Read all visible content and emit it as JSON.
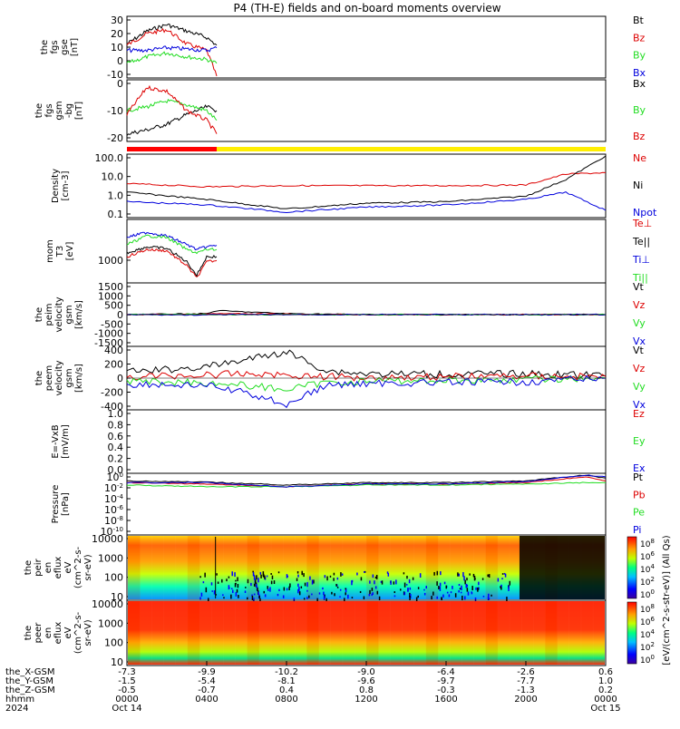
{
  "title": "P4 (TH-E) fields and on-board moments overview",
  "colorbar_label": "[eV/(cm^2-s-str-eV)] (All Qs)",
  "colorbar_ticks": [
    "10^8",
    "10^6",
    "10^4",
    "10^2",
    "10^0"
  ],
  "colors": {
    "black": "#000000",
    "red": "#dd0000",
    "green": "#22dd22",
    "blue": "#0000dd",
    "yellow": "#ffee00"
  },
  "mode_bar": {
    "slow_until": "0430",
    "colors": [
      "#ff0000",
      "#ffee00"
    ]
  },
  "chart_data": [
    {
      "type": "line",
      "panel": "fgs_gse",
      "ylabel": [
        "the",
        "fgs",
        "gse",
        "[nT]"
      ],
      "ylim": [
        -10,
        35
      ],
      "yticks": [
        "30",
        "20",
        "10",
        "0",
        "-10"
      ],
      "x": [
        "0000",
        "0100",
        "0200",
        "0300",
        "0400",
        "0430"
      ],
      "series": [
        {
          "name": "Bt",
          "color": "black",
          "values": [
            15,
            25,
            30,
            25,
            20,
            14
          ]
        },
        {
          "name": "Bz",
          "color": "red",
          "values": [
            14,
            23,
            26,
            15,
            10,
            -10
          ]
        },
        {
          "name": "By",
          "color": "green",
          "values": [
            0,
            5,
            8,
            5,
            3,
            0
          ]
        },
        {
          "name": "Bx",
          "color": "blue",
          "values": [
            10,
            10,
            12,
            11,
            10,
            12
          ]
        }
      ]
    },
    {
      "type": "line",
      "panel": "fgs_gsm",
      "ylabel": [
        "the",
        "fgs",
        "gsm",
        "-bg",
        "[nT]"
      ],
      "ylim": [
        -25,
        5
      ],
      "yticks": [
        "0",
        "-10",
        "-20"
      ],
      "x": [
        "0000",
        "0100",
        "0200",
        "0300",
        "0400",
        "0430"
      ],
      "series": [
        {
          "name": "Bx",
          "color": "black",
          "values": [
            -22,
            -20,
            -17,
            -12,
            -8,
            -10
          ]
        },
        {
          "name": "By",
          "color": "green",
          "values": [
            -10,
            -8,
            -5,
            -7,
            -10,
            -15
          ]
        },
        {
          "name": "Bz",
          "color": "red",
          "values": [
            -12,
            2,
            0,
            -10,
            -15,
            -22
          ]
        }
      ]
    },
    {
      "type": "line",
      "panel": "density",
      "ylabel": [
        "Density",
        "[cm-3]"
      ],
      "log": true,
      "ylim": [
        0.05,
        100
      ],
      "yticks": [
        "100.0",
        "10.0",
        "1.0",
        "0.1"
      ],
      "x": [
        "0000",
        "0400",
        "0800",
        "1200",
        "1600",
        "2000",
        "2200",
        "2400"
      ],
      "series": [
        {
          "name": "Ne",
          "color": "red",
          "values": [
            3,
            2,
            2.3,
            2.3,
            2.3,
            2.5,
            10,
            12
          ]
        },
        {
          "name": "Ni",
          "color": "black",
          "values": [
            1,
            0.4,
            0.12,
            0.25,
            0.3,
            0.6,
            5,
            100
          ]
        },
        {
          "name": "Npot",
          "color": "blue",
          "values": [
            0.3,
            0.2,
            0.08,
            0.15,
            0.2,
            0.4,
            1,
            0.1
          ]
        }
      ]
    },
    {
      "type": "line",
      "panel": "mom_temp",
      "ylabel": [
        "mom",
        "T3",
        "[eV]"
      ],
      "log": true,
      "ylim": [
        500,
        15000
      ],
      "yticks": [
        "1000"
      ],
      "x": [
        "0000",
        "0100",
        "0200",
        "0300",
        "0330",
        "0400",
        "0430"
      ],
      "series": [
        {
          "name": "Te⊥",
          "color": "red",
          "values": [
            2000,
            3000,
            2800,
            1200,
            600,
            1500,
            1600
          ]
        },
        {
          "name": "Te||",
          "color": "black",
          "values": [
            2500,
            3500,
            3200,
            1500,
            700,
            2000,
            2000
          ]
        },
        {
          "name": "Ti⊥",
          "color": "blue",
          "values": [
            6000,
            8000,
            6500,
            4000,
            3000,
            3500,
            3800
          ]
        },
        {
          "name": "Ti||",
          "color": "green",
          "values": [
            4000,
            6500,
            6000,
            3000,
            2500,
            3000,
            3000
          ]
        }
      ]
    },
    {
      "type": "line",
      "panel": "peim_velocity",
      "ylabel": [
        "the",
        "peim",
        "velocity",
        "gsm",
        "[km/s]"
      ],
      "ylim": [
        -1500,
        1500
      ],
      "yticks": [
        "1500",
        "1000",
        "500",
        "0",
        "-500",
        "-1000",
        "-1500"
      ],
      "x": [
        "0000",
        "0400",
        "0430",
        "0800",
        "1200",
        "1600",
        "2000",
        "2400"
      ],
      "series": [
        {
          "name": "Vt",
          "color": "black",
          "values": [
            0,
            50,
            200,
            50,
            0,
            0,
            0,
            0
          ]
        },
        {
          "name": "Vz",
          "color": "red",
          "values": [
            0,
            20,
            50,
            20,
            0,
            0,
            0,
            0
          ]
        },
        {
          "name": "Vy",
          "color": "green",
          "values": [
            0,
            20,
            0,
            0,
            0,
            0,
            0,
            0
          ]
        },
        {
          "name": "Vx",
          "color": "blue",
          "values": [
            0,
            -20,
            0,
            0,
            0,
            0,
            0,
            0
          ]
        }
      ]
    },
    {
      "type": "line",
      "panel": "peem_velocity",
      "ylabel": [
        "the",
        "peem",
        "velocity",
        "gsm",
        "[km/s]"
      ],
      "ylim": [
        -400,
        400
      ],
      "yticks": [
        "400",
        "200",
        "0",
        "-200",
        "-400"
      ],
      "x": [
        "0000",
        "0400",
        "0600",
        "0800",
        "1000",
        "1200",
        "1600",
        "2000",
        "2400"
      ],
      "series": [
        {
          "name": "Vt",
          "color": "black",
          "values": [
            80,
            150,
            250,
            350,
            100,
            60,
            50,
            60,
            30
          ]
        },
        {
          "name": "Vz",
          "color": "red",
          "values": [
            20,
            40,
            60,
            40,
            20,
            10,
            20,
            30,
            20
          ]
        },
        {
          "name": "Vy",
          "color": "green",
          "values": [
            -40,
            -60,
            -100,
            -150,
            -60,
            -40,
            -30,
            -20,
            0
          ]
        },
        {
          "name": "Vx",
          "color": "blue",
          "values": [
            -80,
            -100,
            -200,
            -350,
            -100,
            -70,
            -60,
            -50,
            0
          ]
        }
      ]
    },
    {
      "type": "line",
      "panel": "e_field",
      "ylabel": [
        "E=-VxB",
        "[mV/m]"
      ],
      "ylim": [
        0,
        1
      ],
      "yticks": [
        "1.0",
        "0.8",
        "0.6",
        "0.4",
        "0.2",
        "0.0"
      ],
      "series": [
        {
          "name": "Ez",
          "color": "red"
        },
        {
          "name": "Ey",
          "color": "green"
        },
        {
          "name": "Ex",
          "color": "blue"
        }
      ]
    },
    {
      "type": "line",
      "panel": "pressure",
      "ylabel": [
        "Pressure",
        "[nPa]"
      ],
      "log": true,
      "yticks": [
        "10^0",
        "10^-2",
        "10^-4",
        "10^-6",
        "10^-8",
        "10^-10"
      ],
      "x": [
        "0000",
        "0400",
        "0800",
        "1200",
        "1600",
        "2000",
        "2300",
        "2400"
      ],
      "series": [
        {
          "name": "Pt",
          "color": "black",
          "values": [
            0.1,
            0.06,
            0.02,
            0.05,
            0.05,
            0.1,
            1,
            0.3
          ]
        },
        {
          "name": "Pb",
          "color": "red",
          "values": [
            0.05,
            0.03,
            0.01,
            0.03,
            0.03,
            0.05,
            0.5,
            0.1
          ]
        },
        {
          "name": "Pe",
          "color": "green",
          "values": [
            0.02,
            0.01,
            0.01,
            0.02,
            0.02,
            0.03,
            0.05,
            0.05
          ]
        },
        {
          "name": "Pi",
          "color": "blue",
          "values": [
            0.05,
            0.05,
            0.01,
            0.03,
            0.03,
            0.08,
            1,
            0.5
          ]
        }
      ]
    },
    {
      "type": "heatmap",
      "panel": "peir",
      "ylabel": [
        "the",
        "peir",
        "en",
        "eflux",
        "eV",
        "(cm^2-s-",
        "sr-eV)"
      ],
      "yticks": [
        "10000",
        "1000",
        "100",
        "10"
      ]
    },
    {
      "type": "heatmap",
      "panel": "peer",
      "ylabel": [
        "the",
        "peer",
        "en",
        "eflux",
        "eV",
        "(cm^2-s-",
        "sr-eV)"
      ],
      "yticks": [
        "10000",
        "1000",
        "100",
        "10"
      ]
    }
  ],
  "legends": [
    [
      {
        "t": "Bt",
        "c": "#000000"
      },
      {
        "t": "Bz",
        "c": "#dd0000"
      },
      {
        "t": "By",
        "c": "#22dd22"
      },
      {
        "t": "Bx",
        "c": "#0000dd"
      }
    ],
    [
      {
        "t": "Bx",
        "c": "#000000"
      },
      {
        "t": "By",
        "c": "#22dd22"
      },
      {
        "t": "Bz",
        "c": "#dd0000"
      }
    ],
    [
      {
        "t": "Ne",
        "c": "#dd0000"
      },
      {
        "t": "Ni",
        "c": "#000000"
      },
      {
        "t": "Npot",
        "c": "#0000dd"
      }
    ],
    [
      {
        "t": "Te⊥",
        "c": "#dd0000"
      },
      {
        "t": "Te||",
        "c": "#000000"
      },
      {
        "t": "Ti⊥",
        "c": "#0000dd"
      },
      {
        "t": "Ti||",
        "c": "#22dd22"
      }
    ],
    [
      {
        "t": "Vt",
        "c": "#000000"
      },
      {
        "t": "Vz",
        "c": "#dd0000"
      },
      {
        "t": "Vy",
        "c": "#22dd22"
      },
      {
        "t": "Vx",
        "c": "#0000dd"
      }
    ],
    [
      {
        "t": "Vt",
        "c": "#000000"
      },
      {
        "t": "Vz",
        "c": "#dd0000"
      },
      {
        "t": "Vy",
        "c": "#22dd22"
      },
      {
        "t": "Vx",
        "c": "#0000dd"
      }
    ],
    [
      {
        "t": "Ez",
        "c": "#dd0000"
      },
      {
        "t": "Ey",
        "c": "#22dd22"
      },
      {
        "t": "Ex",
        "c": "#0000dd"
      }
    ],
    [
      {
        "t": "Pt",
        "c": "#000000"
      },
      {
        "t": "Pb",
        "c": "#dd0000"
      },
      {
        "t": "Pe",
        "c": "#22dd22"
      },
      {
        "t": "Pi",
        "c": "#0000dd"
      }
    ]
  ],
  "xaxis": {
    "row_labels": [
      "the_X-GSM",
      "the_Y-GSM",
      "the_Z-GSM",
      "hhmm",
      "2024"
    ],
    "ticks": [
      {
        "x": [
          "-7.3",
          "-1.5",
          "-0.5"
        ],
        "hhmm": "0000",
        "date": "Oct 14"
      },
      {
        "x": [
          "-9.9",
          "-5.4",
          "-0.7"
        ],
        "hhmm": "0400",
        "date": ""
      },
      {
        "x": [
          "-10.2",
          "-8.1",
          "0.4"
        ],
        "hhmm": "0800",
        "date": ""
      },
      {
        "x": [
          "-9.0",
          "-9.6",
          "0.8"
        ],
        "hhmm": "1200",
        "date": ""
      },
      {
        "x": [
          "-6.4",
          "-9.7",
          "-0.3"
        ],
        "hhmm": "1600",
        "date": ""
      },
      {
        "x": [
          "-2.6",
          "-7.7",
          "-1.3"
        ],
        "hhmm": "2000",
        "date": ""
      },
      {
        "x": [
          "0.6",
          "1.0",
          "0.2"
        ],
        "hhmm": "0000",
        "date": "Oct 15"
      }
    ]
  }
}
